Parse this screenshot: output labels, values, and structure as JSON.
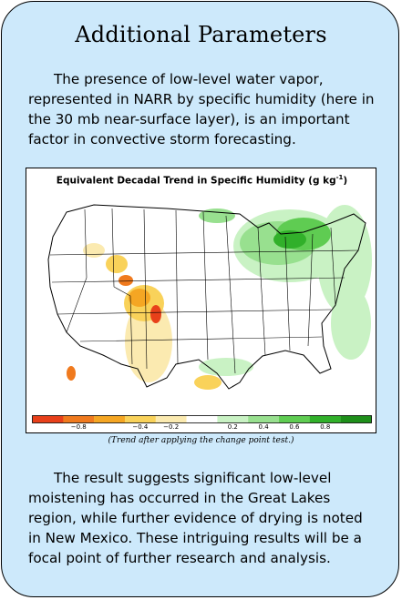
{
  "title": "Additional Parameters",
  "paragraph1": "The presence of low-level water vapor, represented in NARR by specific humidity (here in the 30 mb near-surface layer), is an important factor in convective storm forecasting.",
  "figure": {
    "title_main": "Equivalent Decadal Trend in Specific Humidity (g kg",
    "title_sup": "-1",
    "title_end": ")",
    "caption": "(Trend after applying the change point test.)",
    "colorbar": {
      "colors": [
        "#e8401a",
        "#f07a1e",
        "#f5a623",
        "#f9d25a",
        "#fbeab0",
        "#ffffff",
        "#c9f2c4",
        "#98e08f",
        "#5fcc52",
        "#31b02a",
        "#1e8f1a"
      ],
      "tick_labels": [
        "−0.8",
        "−0.4",
        "−0.2",
        "0.2",
        "0.4",
        "0.6",
        "0.8"
      ]
    }
  },
  "paragraph2": "The result suggests significant low-level moistening has occurred in the Great Lakes region, while further evidence of drying is noted in New Mexico.  These intriguing results will be a focal point of further research and analysis."
}
